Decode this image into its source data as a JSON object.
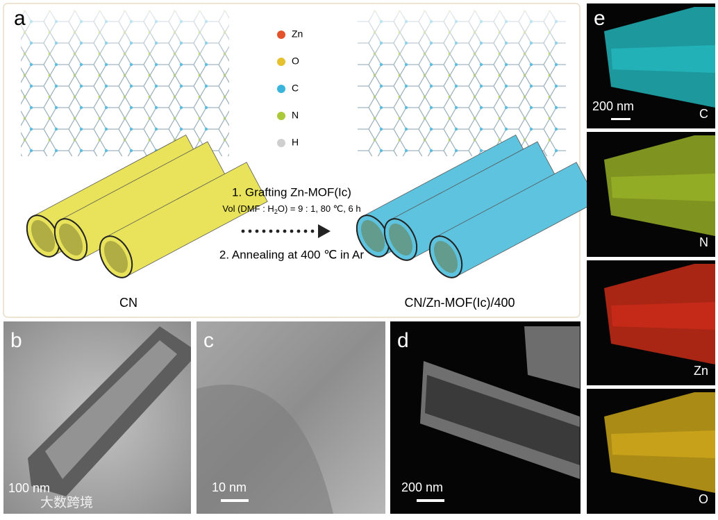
{
  "panel_a": {
    "label": "a",
    "legend": [
      {
        "symbol": "Zn",
        "color": "#e2522b"
      },
      {
        "symbol": "O",
        "color": "#e5c12f"
      },
      {
        "symbol": "C",
        "color": "#3bb4dc"
      },
      {
        "symbol": "N",
        "color": "#a9c93a"
      },
      {
        "symbol": "H",
        "color": "#cfcfcf"
      }
    ],
    "step1": "1. Grafting Zn-MOF(Ic)",
    "conditions": {
      "prefix": "Vol (DMF : H",
      "subscript": "2",
      "suffix": "O) = 9 : 1, 80 ℃, 6 h"
    },
    "step2": "2. Annealing at 400 ℃ in Ar",
    "left_label": "CN",
    "left_color": "#e8e35a",
    "right_label": "CN/Zn-MOF(Ic)/400",
    "right_color": "#5ec3de"
  },
  "panel_b": {
    "label": "b",
    "scale": "100 nm"
  },
  "panel_c": {
    "label": "c",
    "scale": "10 nm"
  },
  "panel_d": {
    "label": "d",
    "scale": "200 nm"
  },
  "panel_e": {
    "label": "e",
    "scale": "200 nm",
    "maps": [
      {
        "element": "C",
        "color": "#25c9cf"
      },
      {
        "element": "N",
        "color": "#a8c42a"
      },
      {
        "element": "Zn",
        "color": "#e0301a"
      },
      {
        "element": "O",
        "color": "#e2b81c"
      }
    ]
  },
  "watermark": "大数跨境"
}
